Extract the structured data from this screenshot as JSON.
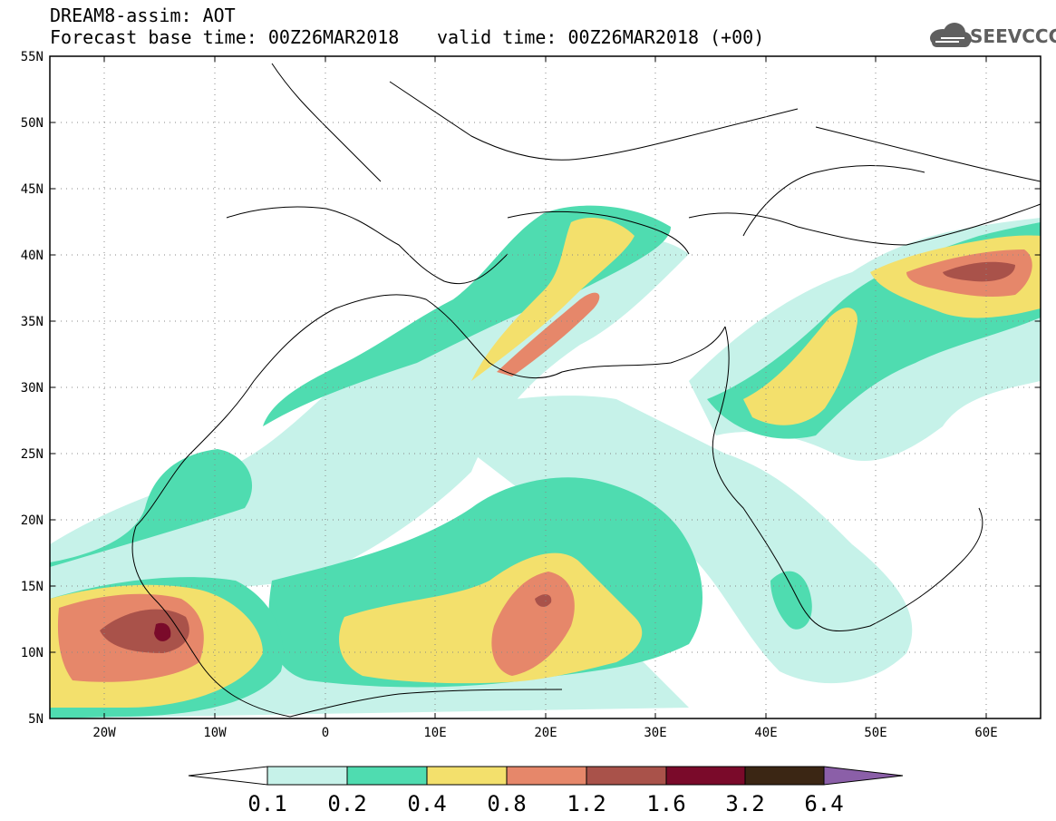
{
  "title": {
    "line1": "DREAM8-assim: AOT",
    "line2": "Forecast base time: 00Z26MAR2018",
    "valid": "valid time: 00Z26MAR2018 (+00)"
  },
  "logo": {
    "text": "SEEVCCC",
    "icon": "cloud-icon"
  },
  "axes": {
    "lat_labels": [
      "55N",
      "50N",
      "45N",
      "40N",
      "35N",
      "30N",
      "25N",
      "20N",
      "15N",
      "10N",
      "5N"
    ],
    "lon_labels": [
      "20W",
      "10W",
      "0",
      "10E",
      "20E",
      "30E",
      "40E",
      "50E",
      "60E"
    ],
    "lon_range": [
      -25,
      65
    ],
    "lat_range": [
      5,
      55
    ],
    "grid": "dotted"
  },
  "colorbar": {
    "labels": [
      "0.1",
      "0.2",
      "0.4",
      "0.8",
      "1.2",
      "1.6",
      "3.2",
      "6.4"
    ],
    "colors": [
      "#ffffff",
      "#c6f2e9",
      "#4fdcb0",
      "#f3e06c",
      "#e6876a",
      "#a9524a",
      "#7a0a2a",
      "#3b2614",
      "#8b5fa8"
    ]
  },
  "chart_data": {
    "type": "heatmap",
    "field": "AOT",
    "levels": [
      0.1,
      0.2,
      0.4,
      0.8,
      1.2,
      1.6,
      3.2,
      6.4
    ],
    "xlim": [
      -25,
      65
    ],
    "ylim": [
      5,
      55
    ]
  }
}
